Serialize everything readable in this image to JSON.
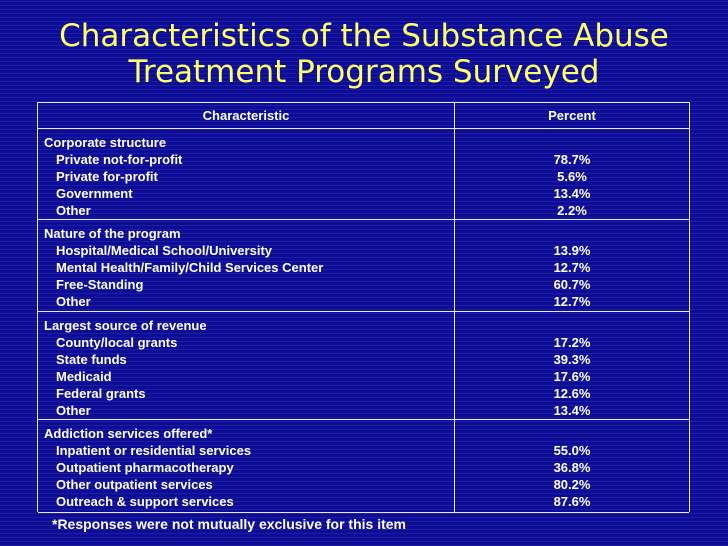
{
  "title": {
    "line1": "Characteristics of the Substance Abuse",
    "line2": "Treatment Programs Surveyed"
  },
  "table": {
    "headers": {
      "characteristic": "Characteristic",
      "percent": "Percent"
    },
    "sections": [
      {
        "heading": "Corporate structure",
        "items": [
          {
            "label": "Private not-for-profit",
            "value": "78.7%"
          },
          {
            "label": "Private for-profit",
            "value": "5.6%"
          },
          {
            "label": "Government",
            "value": "13.4%"
          },
          {
            "label": "Other",
            "value": "2.2%"
          }
        ]
      },
      {
        "heading": "Nature of the program",
        "items": [
          {
            "label": "Hospital/Medical School/University",
            "value": "13.9%"
          },
          {
            "label": "Mental Health/Family/Child Services Center",
            "value": "12.7%"
          },
          {
            "label": "Free-Standing",
            "value": "60.7%"
          },
          {
            "label": "Other",
            "value": "12.7%"
          }
        ]
      },
      {
        "heading": "Largest source of revenue",
        "items": [
          {
            "label": "County/local grants",
            "value": "17.2%"
          },
          {
            "label": "State funds",
            "value": "39.3%"
          },
          {
            "label": "Medicaid",
            "value": "17.6%"
          },
          {
            "label": "Federal grants",
            "value": "12.6%"
          },
          {
            "label": "Other",
            "value": "13.4%"
          }
        ]
      },
      {
        "heading": "Addiction services offered*",
        "items": [
          {
            "label": "Inpatient or residential services",
            "value": "55.0%"
          },
          {
            "label": "Outpatient pharmacotherapy",
            "value": "36.8%"
          },
          {
            "label": "Other outpatient services",
            "value": "80.2%"
          },
          {
            "label": "Outreach & support services",
            "value": "87.6%"
          }
        ]
      }
    ]
  },
  "footnote": "*Responses were not mutually exclusive for this item"
}
